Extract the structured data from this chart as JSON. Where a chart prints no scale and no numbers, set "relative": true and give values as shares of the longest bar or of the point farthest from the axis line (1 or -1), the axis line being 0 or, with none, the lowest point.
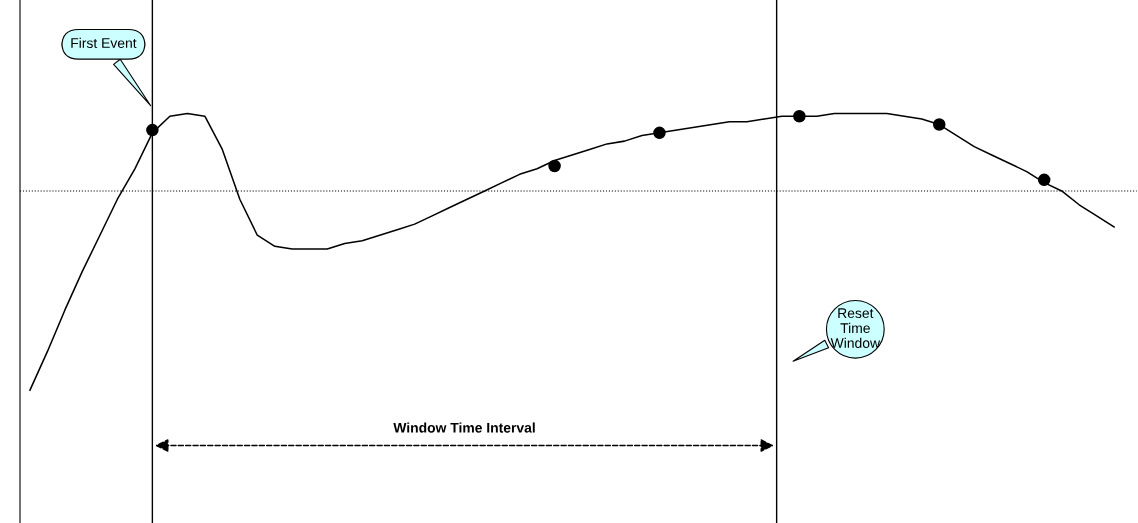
{
  "chart_data": {
    "type": "line",
    "relative": true,
    "categories": [
      null,
      null,
      null,
      null,
      null,
      null,
      null,
      null,
      null,
      null,
      null,
      null,
      null,
      null,
      null,
      null,
      null,
      null,
      null,
      null,
      null,
      null,
      null,
      null,
      null,
      null,
      null,
      null,
      null,
      null,
      null,
      null,
      null,
      null,
      null,
      null,
      null,
      null,
      null,
      null,
      null,
      null,
      null,
      null,
      null,
      null,
      null,
      null,
      null,
      null,
      null,
      null,
      null,
      null,
      null,
      null,
      null,
      null,
      null,
      null,
      null,
      null,
      null
    ],
    "series": [
      {
        "color": "#000000",
        "marker": "none",
        "values": [
          0,
          0.14,
          0.29,
          0.43,
          0.56,
          0.69,
          0.8,
          0.93,
          0.99,
          1,
          0.99,
          0.87,
          0.69,
          0.56,
          0.52,
          0.51,
          0.51,
          0.51,
          0.53,
          0.54,
          0.56,
          0.58,
          0.6,
          0.63,
          0.66,
          0.69,
          0.72,
          0.75,
          0.78,
          0.8,
          0.83,
          0.85,
          0.87,
          0.89,
          0.9,
          0.92,
          0.93,
          0.94,
          0.95,
          0.96,
          0.97,
          0.97,
          0.98,
          0.99,
          0.99,
          0.99,
          1,
          1,
          1,
          1,
          0.99,
          0.98,
          0.96,
          0.92,
          0.88,
          0.85,
          0.82,
          0.79,
          0.75,
          0.72,
          0.67,
          0.63,
          0.59
        ]
      },
      {
        "type": "line",
        "color": "#000000",
        "marker": "circle",
        "values": [
          null,
          null,
          null,
          null,
          null,
          null,
          null,
          0.94,
          null,
          null,
          null,
          null,
          null,
          null,
          null,
          null,
          null,
          null,
          null,
          null,
          null,
          null,
          null,
          null,
          null,
          null,
          null,
          null,
          null,
          null,
          0.81,
          null,
          null,
          null,
          null,
          null,
          0.93,
          null,
          null,
          null,
          null,
          null,
          null,
          null,
          0.99,
          null,
          null,
          null,
          null,
          null,
          null,
          null,
          0.96,
          null,
          null,
          null,
          null,
          null,
          0.76,
          null,
          null,
          null,
          null
        ]
      }
    ],
    "ref_lines": [
      {
        "axis": "y",
        "value": 0.72,
        "color": "#000000",
        "line_style": "dotted"
      }
    ],
    "annotations": [
      "First Event",
      "Reset Time Window",
      "Window Time Interval"
    ]
  }
}
